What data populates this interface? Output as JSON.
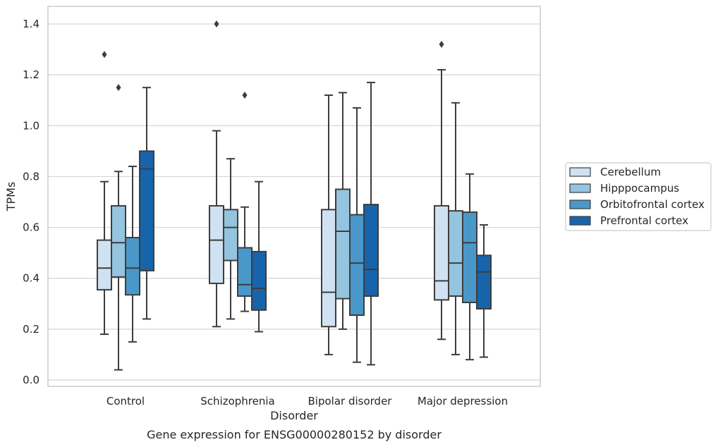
{
  "caption": "Gene expression for ENSG00000280152 by disorder",
  "chart_data": {
    "type": "box",
    "xlabel": "Disorder",
    "ylabel": "TPMs",
    "ylim": [
      -0.03,
      1.47
    ],
    "yticks": [
      "0.0",
      "0.2",
      "0.4",
      "0.6",
      "0.8",
      "1.0",
      "1.2",
      "1.4"
    ],
    "grid": "horizontal",
    "legend_position": "center-right",
    "categories": [
      "Control",
      "Schizophrenia",
      "Bipolar disorder",
      "Major depression"
    ],
    "series": [
      {
        "name": "Cerebellum",
        "color": "#d0e1f2",
        "boxes": [
          {
            "whisker_low": 0.18,
            "q1": 0.355,
            "median": 0.44,
            "q3": 0.55,
            "whisker_high": 0.78,
            "outliers": [
              1.28
            ]
          },
          {
            "whisker_low": 0.21,
            "q1": 0.38,
            "median": 0.55,
            "q3": 0.685,
            "whisker_high": 0.98,
            "outliers": [
              1.4
            ]
          },
          {
            "whisker_low": 0.1,
            "q1": 0.21,
            "median": 0.345,
            "q3": 0.67,
            "whisker_high": 1.12,
            "outliers": []
          },
          {
            "whisker_low": 0.16,
            "q1": 0.315,
            "median": 0.39,
            "q3": 0.685,
            "whisker_high": 1.22,
            "outliers": [
              1.32
            ]
          }
        ]
      },
      {
        "name": "Hipppocampus",
        "color": "#94c4df",
        "boxes": [
          {
            "whisker_low": 0.04,
            "q1": 0.405,
            "median": 0.54,
            "q3": 0.685,
            "whisker_high": 0.82,
            "outliers": [
              1.15
            ]
          },
          {
            "whisker_low": 0.24,
            "q1": 0.47,
            "median": 0.6,
            "q3": 0.67,
            "whisker_high": 0.87,
            "outliers": []
          },
          {
            "whisker_low": 0.2,
            "q1": 0.32,
            "median": 0.585,
            "q3": 0.75,
            "whisker_high": 1.13,
            "outliers": []
          },
          {
            "whisker_low": 0.1,
            "q1": 0.33,
            "median": 0.46,
            "q3": 0.665,
            "whisker_high": 1.09,
            "outliers": []
          }
        ]
      },
      {
        "name": "Orbitofrontal cortex",
        "color": "#4a98c9",
        "boxes": [
          {
            "whisker_low": 0.15,
            "q1": 0.335,
            "median": 0.44,
            "q3": 0.56,
            "whisker_high": 0.84,
            "outliers": []
          },
          {
            "whisker_low": 0.27,
            "q1": 0.33,
            "median": 0.375,
            "q3": 0.52,
            "whisker_high": 0.68,
            "outliers": [
              1.12
            ]
          },
          {
            "whisker_low": 0.07,
            "q1": 0.255,
            "median": 0.46,
            "q3": 0.65,
            "whisker_high": 1.07,
            "outliers": []
          },
          {
            "whisker_low": 0.08,
            "q1": 0.305,
            "median": 0.54,
            "q3": 0.66,
            "whisker_high": 0.81,
            "outliers": []
          }
        ]
      },
      {
        "name": "Prefrontal cortex",
        "color": "#1764ab",
        "boxes": [
          {
            "whisker_low": 0.24,
            "q1": 0.43,
            "median": 0.83,
            "q3": 0.9,
            "whisker_high": 1.15,
            "outliers": []
          },
          {
            "whisker_low": 0.19,
            "q1": 0.275,
            "median": 0.36,
            "q3": 0.505,
            "whisker_high": 0.78,
            "outliers": []
          },
          {
            "whisker_low": 0.06,
            "q1": 0.33,
            "median": 0.435,
            "q3": 0.69,
            "whisker_high": 1.17,
            "outliers": []
          },
          {
            "whisker_low": 0.09,
            "q1": 0.28,
            "median": 0.425,
            "q3": 0.49,
            "whisker_high": 0.61,
            "outliers": []
          }
        ]
      }
    ]
  }
}
